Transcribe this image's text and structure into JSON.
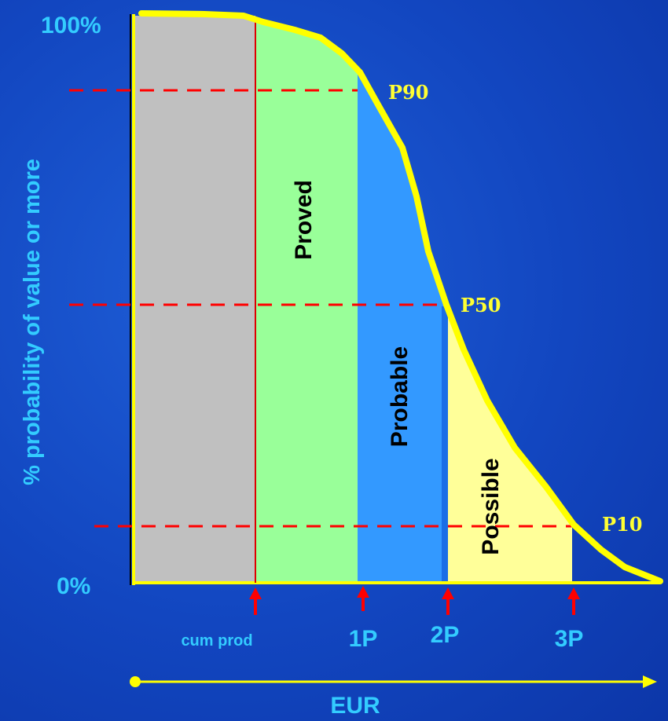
{
  "y_axis": {
    "label": "% probability of value or more",
    "top_tick": "100%",
    "bottom_tick": "0%"
  },
  "x_axis": {
    "label": "EUR"
  },
  "regions": {
    "proved": "Proved",
    "probable": "Probable",
    "possible": "Possible"
  },
  "percentiles": {
    "p90": "P90",
    "p50": "P50",
    "p10": "P10"
  },
  "markers": {
    "cum_prod": "cum prod",
    "one_p": "1P",
    "two_p": "2P",
    "three_p": "3P"
  },
  "colors": {
    "background": "#1246c0",
    "cum_prod_fill": "#c0c0c0",
    "proved_fill": "#99ff99",
    "probable_fill": "#3399ff",
    "possible_fill": "#ffff99",
    "curve": "#ffff00",
    "dashed_lines": "#ff0000",
    "labels": "#33ccff"
  }
}
